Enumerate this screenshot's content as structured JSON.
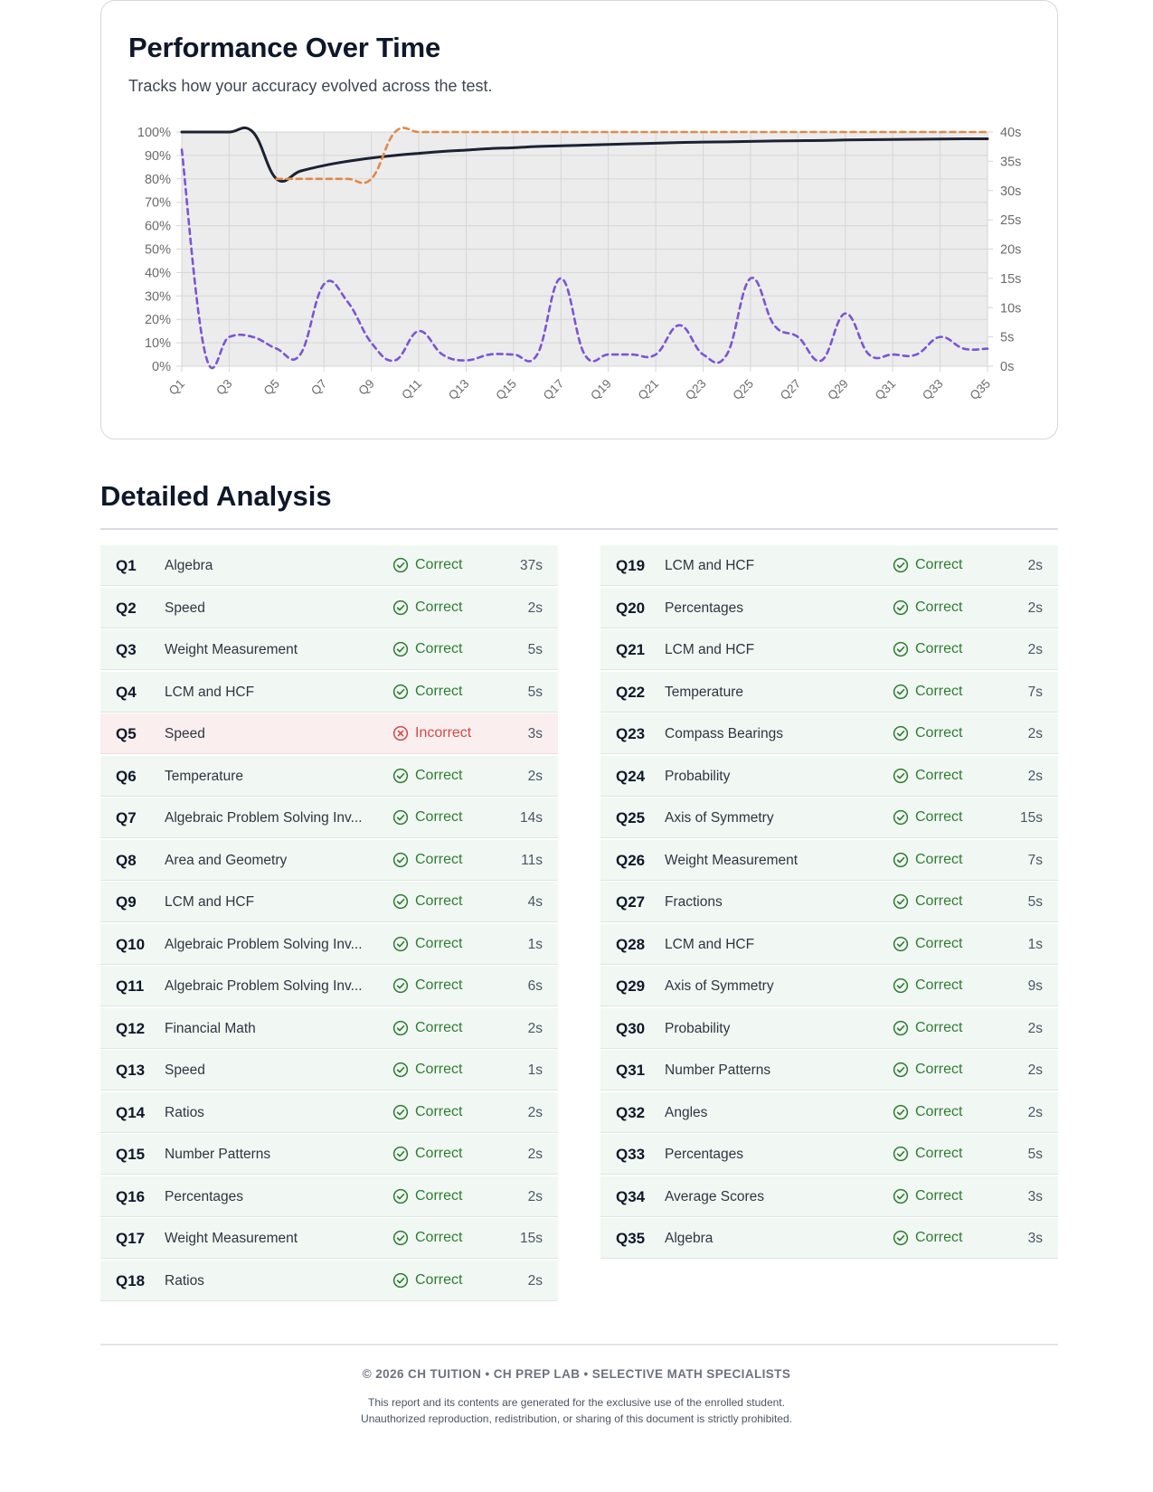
{
  "chart_card": {
    "title": "Performance Over Time",
    "subtitle": "Tracks how your accuracy evolved across the test."
  },
  "chart_data": {
    "type": "line",
    "x": [
      "Q1",
      "Q2",
      "Q3",
      "Q4",
      "Q5",
      "Q6",
      "Q7",
      "Q8",
      "Q9",
      "Q10",
      "Q11",
      "Q12",
      "Q13",
      "Q14",
      "Q15",
      "Q16",
      "Q17",
      "Q18",
      "Q19",
      "Q20",
      "Q21",
      "Q22",
      "Q23",
      "Q24",
      "Q25",
      "Q26",
      "Q27",
      "Q28",
      "Q29",
      "Q30",
      "Q31",
      "Q32",
      "Q33",
      "Q34",
      "Q35"
    ],
    "x_tick_labels": [
      "Q1",
      "Q3",
      "Q5",
      "Q7",
      "Q9",
      "Q11",
      "Q13",
      "Q15",
      "Q17",
      "Q19",
      "Q21",
      "Q23",
      "Q25",
      "Q27",
      "Q29",
      "Q31",
      "Q33",
      "Q35"
    ],
    "y_left": {
      "ticks": [
        "0%",
        "10%",
        "20%",
        "30%",
        "40%",
        "50%",
        "60%",
        "70%",
        "80%",
        "90%",
        "100%"
      ],
      "range": [
        0,
        100
      ]
    },
    "y_right": {
      "ticks": [
        "0s",
        "5s",
        "10s",
        "15s",
        "20s",
        "25s",
        "30s",
        "35s",
        "40s"
      ],
      "range": [
        0,
        40
      ]
    },
    "series": [
      {
        "axis": "left",
        "style": "solid",
        "color": "#1c2233",
        "values": [
          100,
          100,
          100,
          100,
          80,
          83.3,
          85.7,
          87.5,
          88.9,
          90,
          90.9,
          91.7,
          92.3,
          92.9,
          93.3,
          93.8,
          94.1,
          94.4,
          94.7,
          95,
          95.2,
          95.5,
          95.7,
          95.8,
          96,
          96.2,
          96.3,
          96.4,
          96.6,
          96.7,
          96.8,
          96.9,
          97,
          97.1,
          97.1
        ]
      },
      {
        "axis": "left",
        "style": "dashed",
        "color": "#e0894a",
        "values": [
          null,
          null,
          null,
          null,
          80,
          80,
          80,
          80,
          80,
          100,
          100,
          100,
          100,
          100,
          100,
          100,
          100,
          100,
          100,
          100,
          100,
          100,
          100,
          100,
          100,
          100,
          100,
          100,
          100,
          100,
          100,
          100,
          100,
          100,
          100
        ]
      },
      {
        "axis": "right",
        "style": "dashed",
        "color": "#7b55d4",
        "values": [
          37,
          2,
          5,
          5,
          3,
          2,
          14,
          11,
          4,
          1,
          6,
          2,
          1,
          2,
          2,
          2,
          15,
          2,
          2,
          2,
          2,
          7,
          2,
          2,
          15,
          7,
          5,
          1,
          9,
          2,
          2,
          2,
          5,
          3,
          3
        ]
      }
    ],
    "grid": true,
    "colors": {
      "plot_bg": "#ececec",
      "grid": "#d6d6d6",
      "tick_text": "#6b6b6b"
    }
  },
  "analysis": {
    "title": "Detailed Analysis",
    "status_labels": {
      "correct": "Correct",
      "incorrect": "Incorrect"
    },
    "left": [
      {
        "q": "Q1",
        "topic": "Algebra",
        "status": "Correct",
        "time": "37s"
      },
      {
        "q": "Q2",
        "topic": "Speed",
        "status": "Correct",
        "time": "2s"
      },
      {
        "q": "Q3",
        "topic": "Weight Measurement",
        "status": "Correct",
        "time": "5s"
      },
      {
        "q": "Q4",
        "topic": "LCM and HCF",
        "status": "Correct",
        "time": "5s"
      },
      {
        "q": "Q5",
        "topic": "Speed",
        "status": "Incorrect",
        "time": "3s"
      },
      {
        "q": "Q6",
        "topic": "Temperature",
        "status": "Correct",
        "time": "2s"
      },
      {
        "q": "Q7",
        "topic": "Algebraic Problem Solving Inv...",
        "status": "Correct",
        "time": "14s"
      },
      {
        "q": "Q8",
        "topic": "Area and Geometry",
        "status": "Correct",
        "time": "11s"
      },
      {
        "q": "Q9",
        "topic": "LCM and HCF",
        "status": "Correct",
        "time": "4s"
      },
      {
        "q": "Q10",
        "topic": "Algebraic Problem Solving Inv...",
        "status": "Correct",
        "time": "1s"
      },
      {
        "q": "Q11",
        "topic": "Algebraic Problem Solving Inv...",
        "status": "Correct",
        "time": "6s"
      },
      {
        "q": "Q12",
        "topic": "Financial Math",
        "status": "Correct",
        "time": "2s"
      },
      {
        "q": "Q13",
        "topic": "Speed",
        "status": "Correct",
        "time": "1s"
      },
      {
        "q": "Q14",
        "topic": "Ratios",
        "status": "Correct",
        "time": "2s"
      },
      {
        "q": "Q15",
        "topic": "Number Patterns",
        "status": "Correct",
        "time": "2s"
      },
      {
        "q": "Q16",
        "topic": "Percentages",
        "status": "Correct",
        "time": "2s"
      },
      {
        "q": "Q17",
        "topic": "Weight Measurement",
        "status": "Correct",
        "time": "15s"
      },
      {
        "q": "Q18",
        "topic": "Ratios",
        "status": "Correct",
        "time": "2s"
      }
    ],
    "right": [
      {
        "q": "Q19",
        "topic": "LCM and HCF",
        "status": "Correct",
        "time": "2s"
      },
      {
        "q": "Q20",
        "topic": "Percentages",
        "status": "Correct",
        "time": "2s"
      },
      {
        "q": "Q21",
        "topic": "LCM and HCF",
        "status": "Correct",
        "time": "2s"
      },
      {
        "q": "Q22",
        "topic": "Temperature",
        "status": "Correct",
        "time": "7s"
      },
      {
        "q": "Q23",
        "topic": "Compass Bearings",
        "status": "Correct",
        "time": "2s"
      },
      {
        "q": "Q24",
        "topic": "Probability",
        "status": "Correct",
        "time": "2s"
      },
      {
        "q": "Q25",
        "topic": "Axis of Symmetry",
        "status": "Correct",
        "time": "15s"
      },
      {
        "q": "Q26",
        "topic": "Weight Measurement",
        "status": "Correct",
        "time": "7s"
      },
      {
        "q": "Q27",
        "topic": "Fractions",
        "status": "Correct",
        "time": "5s"
      },
      {
        "q": "Q28",
        "topic": "LCM and HCF",
        "status": "Correct",
        "time": "1s"
      },
      {
        "q": "Q29",
        "topic": "Axis of Symmetry",
        "status": "Correct",
        "time": "9s"
      },
      {
        "q": "Q30",
        "topic": "Probability",
        "status": "Correct",
        "time": "2s"
      },
      {
        "q": "Q31",
        "topic": "Number Patterns",
        "status": "Correct",
        "time": "2s"
      },
      {
        "q": "Q32",
        "topic": "Angles",
        "status": "Correct",
        "time": "2s"
      },
      {
        "q": "Q33",
        "topic": "Percentages",
        "status": "Correct",
        "time": "5s"
      },
      {
        "q": "Q34",
        "topic": "Average Scores",
        "status": "Correct",
        "time": "3s"
      },
      {
        "q": "Q35",
        "topic": "Algebra",
        "status": "Correct",
        "time": "3s"
      }
    ],
    "icons": {
      "correct": "check-circle-icon",
      "incorrect": "x-circle-icon"
    },
    "colors": {
      "correct": "#2e7d32",
      "incorrect": "#d24a4a",
      "correct_row": "#f1f8f3",
      "incorrect_row": "#fbeeee"
    }
  },
  "footer": {
    "brand": "© 2026 CH TUITION • CH PREP LAB • SELECTIVE MATH SPECIALISTS",
    "line1": "This report and its contents are generated for the exclusive use of the enrolled student.",
    "line2": "Unauthorized reproduction, redistribution, or sharing of this document is strictly prohibited."
  }
}
